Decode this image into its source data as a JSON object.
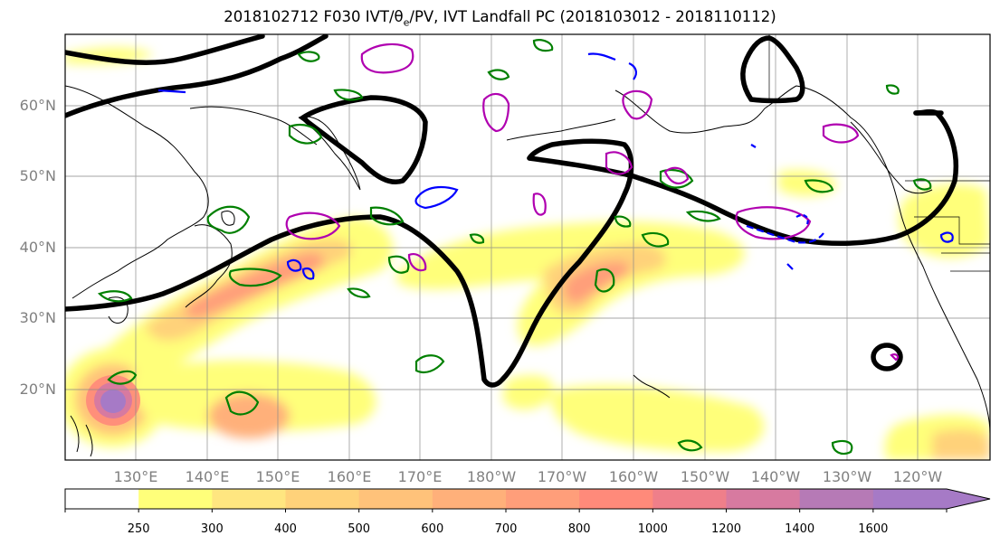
{
  "title": "2018102712 F030 IVT/θe/PV, IVT Landfall PC (2018103012 - 2018110112)",
  "latitude_labels": [
    "60°N",
    "50°N",
    "40°N",
    "30°N",
    "20°N"
  ],
  "longitude_labels": [
    "130°E",
    "140°E",
    "150°E",
    "160°E",
    "170°E",
    "180°W",
    "170°W",
    "160°W",
    "150°W",
    "140°W",
    "130°W",
    "120°W"
  ],
  "colorbar": {
    "tick_labels": [
      "250",
      "300",
      "400",
      "500",
      "600",
      "700",
      "800",
      "1000",
      "1200",
      "1400",
      "1600"
    ],
    "colors": [
      "#ffffff",
      "#ffff7a",
      "#ffe680",
      "#ffd27a",
      "#ffc27a",
      "#ffb07a",
      "#ff9e7a",
      "#ff8a7a",
      "#ef7f8a",
      "#d77aa0",
      "#b67ab6",
      "#a67ac6"
    ]
  },
  "colors": {
    "ivt_contour": "#000000",
    "theta_e": "#008000",
    "pv_positive": "#b000b0",
    "pv_negative": "#0000ff",
    "coastline": "#000000"
  }
}
